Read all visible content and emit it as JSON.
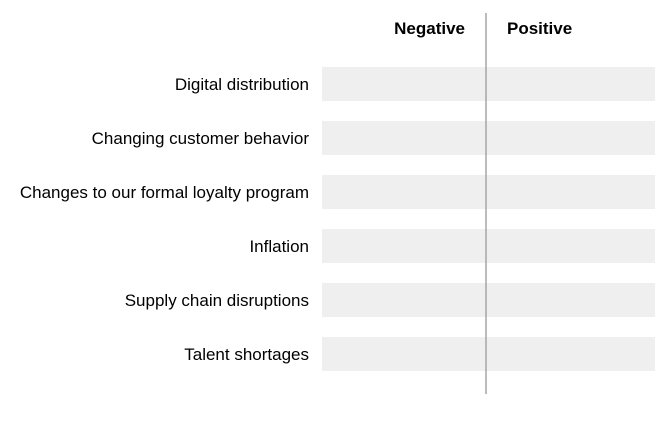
{
  "chart_data": {
    "type": "bar",
    "orientation": "horizontal-diverging",
    "column_headers": {
      "negative": "Negative",
      "positive": "Positive"
    },
    "categories": [
      "Digital distribution",
      "Changing customer behavior",
      "Changes to our formal loyalty program",
      "Inflation",
      "Supply chain disruptions",
      "Talent shortages"
    ],
    "colors": {
      "track": "#efefef",
      "divider": "#a6a6a6",
      "text": "#000000"
    },
    "grid": false,
    "legend": "none"
  }
}
